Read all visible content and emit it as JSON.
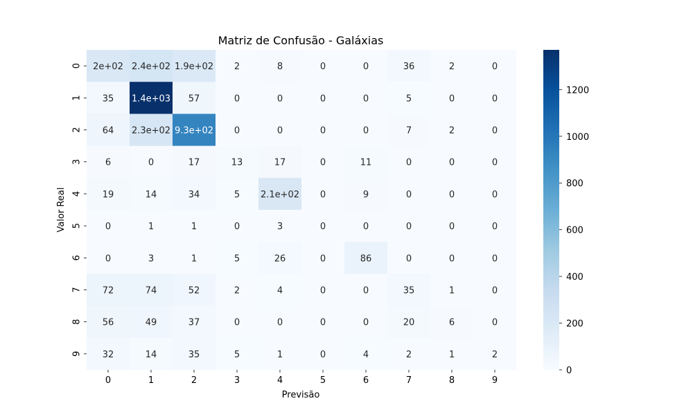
{
  "chart_data": {
    "type": "heatmap",
    "title": "Matriz de Confusão - Galáxias",
    "xlabel": "Previsão",
    "ylabel": "Valor Real",
    "x_categories": [
      "0",
      "1",
      "2",
      "3",
      "4",
      "5",
      "6",
      "7",
      "8",
      "9"
    ],
    "y_categories": [
      "0",
      "1",
      "2",
      "3",
      "4",
      "5",
      "6",
      "7",
      "8",
      "9"
    ],
    "values": [
      [
        200,
        240,
        190,
        2,
        8,
        0,
        0,
        36,
        2,
        0
      ],
      [
        35,
        1370,
        57,
        0,
        0,
        0,
        0,
        5,
        0,
        0
      ],
      [
        64,
        230,
        930,
        0,
        0,
        0,
        0,
        7,
        2,
        0
      ],
      [
        6,
        0,
        17,
        13,
        17,
        0,
        11,
        0,
        0,
        0
      ],
      [
        19,
        14,
        34,
        5,
        210,
        0,
        9,
        0,
        0,
        0
      ],
      [
        0,
        1,
        1,
        0,
        3,
        0,
        0,
        0,
        0,
        0
      ],
      [
        0,
        3,
        1,
        5,
        26,
        0,
        86,
        0,
        0,
        0
      ],
      [
        72,
        74,
        52,
        2,
        4,
        0,
        0,
        35,
        1,
        0
      ],
      [
        56,
        49,
        37,
        0,
        0,
        0,
        0,
        20,
        6,
        0
      ],
      [
        32,
        14,
        35,
        5,
        1,
        0,
        4,
        2,
        1,
        2
      ]
    ],
    "annotations": [
      [
        "2e+02",
        "2.4e+02",
        "1.9e+02",
        "2",
        "8",
        "0",
        "0",
        "36",
        "2",
        "0"
      ],
      [
        "35",
        "1.4e+03",
        "57",
        "0",
        "0",
        "0",
        "0",
        "5",
        "0",
        "0"
      ],
      [
        "64",
        "2.3e+02",
        "9.3e+02",
        "0",
        "0",
        "0",
        "0",
        "7",
        "2",
        "0"
      ],
      [
        "6",
        "0",
        "17",
        "13",
        "17",
        "0",
        "11",
        "0",
        "0",
        "0"
      ],
      [
        "19",
        "14",
        "34",
        "5",
        "2.1e+02",
        "0",
        "9",
        "0",
        "0",
        "0"
      ],
      [
        "0",
        "1",
        "1",
        "0",
        "3",
        "0",
        "0",
        "0",
        "0",
        "0"
      ],
      [
        "0",
        "3",
        "1",
        "5",
        "26",
        "0",
        "86",
        "0",
        "0",
        "0"
      ],
      [
        "72",
        "74",
        "52",
        "2",
        "4",
        "0",
        "0",
        "35",
        "1",
        "0"
      ],
      [
        "56",
        "49",
        "37",
        "0",
        "0",
        "0",
        "0",
        "20",
        "6",
        "0"
      ],
      [
        "32",
        "14",
        "35",
        "5",
        "1",
        "0",
        "4",
        "2",
        "1",
        "2"
      ]
    ],
    "colormap": "Blues",
    "color_range": [
      0,
      1370
    ],
    "colorbar_ticks": [
      0,
      200,
      400,
      600,
      800,
      1000,
      1200
    ],
    "colorbar_tick_labels": [
      "0",
      "200",
      "400",
      "600",
      "800",
      "1000",
      "1200"
    ]
  }
}
